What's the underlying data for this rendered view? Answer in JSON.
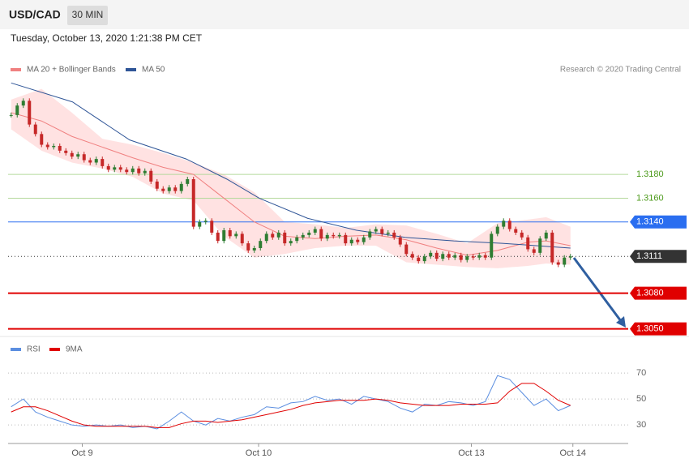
{
  "header": {
    "symbol": "USD/CAD",
    "interval": "30 MIN",
    "timestamp": "Tuesday, October 13, 2020 1:21:38 PM CET"
  },
  "chart_data": [
    {
      "type": "candlestick",
      "source": "Research © 2020 Trading Central",
      "xlim": [
        -0.5,
        101.5
      ],
      "ylim": [
        1.3047,
        1.3262
      ],
      "up_color": "#2e7d32",
      "down_color": "#c62828",
      "closes": [
        1.323,
        1.3238,
        1.3242,
        1.3222,
        1.3214,
        1.3205,
        1.3203,
        1.3204,
        1.32,
        1.3198,
        1.3195,
        1.3197,
        1.3192,
        1.319,
        1.3193,
        1.3187,
        1.3184,
        1.3186,
        1.3184,
        1.3182,
        1.3185,
        1.3181,
        1.3183,
        1.3174,
        1.3168,
        1.3166,
        1.3169,
        1.3166,
        1.3172,
        1.3176,
        1.3136,
        1.314,
        1.3141,
        1.3131,
        1.3124,
        1.3133,
        1.3128,
        1.313,
        1.3122,
        1.3116,
        1.3118,
        1.3124,
        1.313,
        1.3127,
        1.3131,
        1.3122,
        1.3124,
        1.3127,
        1.3129,
        1.3131,
        1.3134,
        1.3126,
        1.3129,
        1.3128,
        1.3129,
        1.3122,
        1.3125,
        1.3123,
        1.3127,
        1.3132,
        1.3134,
        1.313,
        1.3131,
        1.3127,
        1.3121,
        1.3113,
        1.311,
        1.3107,
        1.3111,
        1.3114,
        1.3109,
        1.3113,
        1.311,
        1.3112,
        1.3108,
        1.3111,
        1.311,
        1.3112,
        1.311,
        1.313,
        1.3136,
        1.3141,
        1.3134,
        1.3131,
        1.3127,
        1.3117,
        1.3114,
        1.3126,
        1.3131,
        1.3106,
        1.3104,
        1.311,
        1.3111
      ],
      "ma20": {
        "name": "MA 20 + Bollinger Bands",
        "color": "#f08080",
        "band_color": "#ffd6d6",
        "x": [
          0,
          5,
          10,
          15,
          20,
          25,
          30,
          35,
          40,
          45,
          50,
          55,
          60,
          65,
          70,
          75,
          80,
          85,
          88,
          92
        ],
        "values": [
          1.3232,
          1.3225,
          1.3212,
          1.3203,
          1.3194,
          1.3186,
          1.318,
          1.316,
          1.314,
          1.3128,
          1.3126,
          1.3128,
          1.3129,
          1.3125,
          1.3118,
          1.3112,
          1.3116,
          1.3123,
          1.3124,
          1.312
        ],
        "upper": [
          1.3243,
          1.3252,
          1.3232,
          1.321,
          1.3205,
          1.3198,
          1.319,
          1.318,
          1.3165,
          1.314,
          1.3138,
          1.3135,
          1.3138,
          1.3137,
          1.313,
          1.3122,
          1.3139,
          1.3142,
          1.3144,
          1.3136
        ],
        "lower": [
          1.3218,
          1.32,
          1.319,
          1.3185,
          1.3178,
          1.3164,
          1.3158,
          1.3128,
          1.311,
          1.3113,
          1.3118,
          1.312,
          1.312,
          1.3106,
          1.3104,
          1.3102,
          1.3101,
          1.3103,
          1.3105,
          1.3104
        ]
      },
      "ma50": {
        "name": "MA 50",
        "color": "#2f5597",
        "x": [
          0,
          10.1,
          19.5,
          28.8,
          35.5,
          40.8,
          48.8,
          56.8,
          64.8,
          72.8,
          80.8,
          92
        ],
        "values": [
          1.3257,
          1.3241,
          1.3209,
          1.3193,
          1.3176,
          1.316,
          1.3143,
          1.3133,
          1.3127,
          1.3124,
          1.3122,
          1.3118
        ]
      },
      "levels": [
        {
          "value": 1.318,
          "label": "1.3180",
          "color": "#b5d99c",
          "text_color": "#4c9a1a",
          "style": "text",
          "line_width": 1
        },
        {
          "value": 1.316,
          "label": "1.3160",
          "color": "#b5d99c",
          "text_color": "#4c9a1a",
          "style": "text",
          "line_width": 1
        },
        {
          "value": 1.314,
          "label": "1.3140",
          "color": "#2a6ef0",
          "text_color": "#ffffff",
          "style": "box",
          "line_width": 1
        },
        {
          "value": 1.3111,
          "label": "1.3111",
          "color": "#333333",
          "text_color": "#ffffff",
          "style": "dotted-box",
          "line_width": 1
        },
        {
          "value": 1.308,
          "label": "1.3080",
          "color": "#e00000",
          "text_color": "#ffffff",
          "style": "box",
          "line_width": 2
        },
        {
          "value": 1.305,
          "label": "1.3050",
          "color": "#e00000",
          "text_color": "#ffffff",
          "style": "box",
          "line_width": 2
        }
      ]
    },
    {
      "type": "line",
      "xlim": [
        -0.5,
        101.5
      ],
      "ylim": [
        17,
        95
      ],
      "yticks": [
        30,
        50,
        70
      ],
      "xticks": [
        {
          "value": 11.7,
          "label": "Oct 9"
        },
        {
          "value": 40.7,
          "label": "Oct 10"
        },
        {
          "value": 75.7,
          "label": "Oct 13"
        },
        {
          "value": 92.4,
          "label": "Oct 14"
        }
      ],
      "x": [
        0,
        2,
        4,
        6,
        8,
        10,
        12,
        14,
        16,
        18,
        20,
        22,
        24,
        26,
        28,
        30,
        32,
        34,
        36,
        38,
        40,
        42,
        44,
        46,
        48,
        50,
        52,
        54,
        56,
        58,
        60,
        62,
        64,
        66,
        68,
        70,
        72,
        74,
        76,
        78,
        80,
        82,
        84,
        86,
        88,
        90,
        92
      ],
      "series": [
        {
          "name": "RSI",
          "color": "#5b8ee0",
          "values": [
            44,
            50,
            40,
            36,
            33,
            30,
            29,
            30,
            29,
            30,
            28,
            29,
            27,
            33,
            40,
            33,
            30,
            35,
            33,
            36,
            38,
            44,
            43,
            47,
            48,
            52,
            49,
            50,
            46,
            52,
            50,
            48,
            43,
            40,
            46,
            45,
            48,
            47,
            45,
            48,
            68,
            65,
            55,
            45,
            50,
            41,
            45
          ]
        },
        {
          "name": "9MA",
          "color": "#e00000",
          "values": [
            40,
            44,
            44,
            41,
            37,
            33,
            30,
            29,
            29,
            29,
            29,
            29,
            28,
            28,
            31,
            33,
            33,
            32,
            33,
            34,
            36,
            38,
            40,
            42,
            45,
            47,
            48,
            49,
            49,
            49,
            50,
            49,
            47,
            46,
            45,
            45,
            45,
            46,
            46,
            46,
            47,
            56,
            62,
            62,
            56,
            49,
            45
          ]
        }
      ]
    }
  ]
}
